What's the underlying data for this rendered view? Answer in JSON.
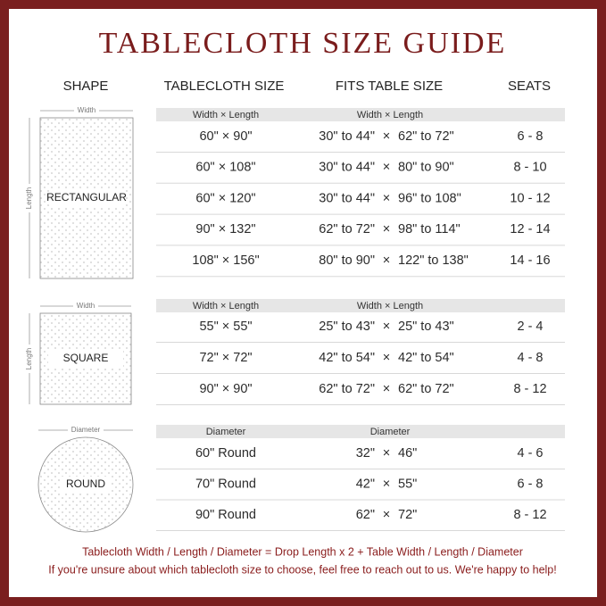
{
  "title": "TABLECLOTH  SIZE  GUIDE",
  "headers": [
    "SHAPE",
    "TABLECLOTH SIZE",
    "FITS TABLE SIZE",
    "SEATS"
  ],
  "sections": [
    {
      "shape": "RECTANGULAR",
      "dim_labels": [
        "Width",
        "Length"
      ],
      "subheader": [
        "Width × Length",
        "Width × Length"
      ],
      "rows": [
        [
          "60\" × 90\"",
          [
            "30\" to 44\"",
            "×",
            "62\" to 72\""
          ],
          "6 - 8"
        ],
        [
          "60\" × 108\"",
          [
            "30\" to 44\"",
            "×",
            "80\" to 90\""
          ],
          "8 - 10"
        ],
        [
          "60\" × 120\"",
          [
            "30\" to 44\"",
            "×",
            "96\" to 108\""
          ],
          "10 - 12"
        ],
        [
          "90\" × 132\"",
          [
            "62\" to 72\"",
            "×",
            "98\" to 114\""
          ],
          "12 - 14"
        ],
        [
          "108\" × 156\"",
          [
            "80\" to 90\"",
            "×",
            "122\" to 138\""
          ],
          "14 - 16"
        ]
      ]
    },
    {
      "shape": "SQUARE",
      "dim_labels": [
        "Width",
        "Length"
      ],
      "subheader": [
        "Width × Length",
        "Width × Length"
      ],
      "rows": [
        [
          "55\" × 55\"",
          [
            "25\" to 43\"",
            "×",
            "25\" to 43\""
          ],
          "2 - 4"
        ],
        [
          "72\" × 72\"",
          [
            "42\" to 54\"",
            "×",
            "42\" to 54\""
          ],
          "4 - 8"
        ],
        [
          "90\" × 90\"",
          [
            "62\" to 72\"",
            "×",
            "62\" to 72\""
          ],
          "8 - 12"
        ]
      ]
    },
    {
      "shape": "ROUND",
      "dim_labels": [
        "Diameter"
      ],
      "subheader": [
        "Diameter",
        "Diameter"
      ],
      "rows": [
        [
          "60\" Round",
          [
            "32\"",
            "×",
            "46\""
          ],
          "4 - 6"
        ],
        [
          "70\" Round",
          [
            "42\"",
            "×",
            "55\""
          ],
          "6 - 8"
        ],
        [
          "90\" Round",
          [
            "62\"",
            "×",
            "72\""
          ],
          "8 - 12"
        ]
      ]
    }
  ],
  "footer": [
    "Tablecloth  Width / Length / Diameter = Drop Length x 2 + Table Width / Length / Diameter",
    "If you're unsure about which tablecloth size to choose, feel free to reach out to us. We're happy to help!"
  ]
}
